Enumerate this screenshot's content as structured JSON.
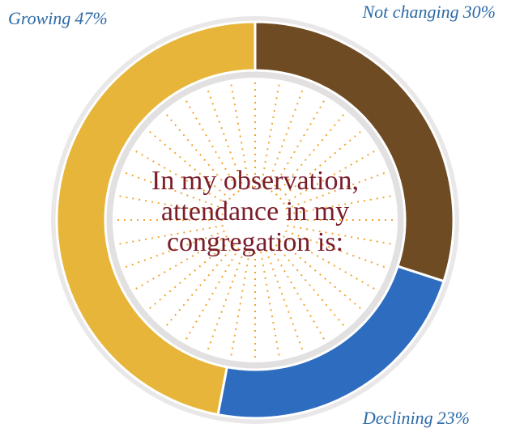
{
  "chart_data": {
    "type": "donut",
    "title": "In my observation, attendance in my congregation is:",
    "categories": [
      "Growing",
      "Not changing",
      "Declining"
    ],
    "values": [
      47,
      30,
      23
    ],
    "value_labels": [
      "47%",
      "30%",
      "23%"
    ],
    "colors": [
      "#e6b53a",
      "#6e4b22",
      "#2e6cc0"
    ]
  }
}
